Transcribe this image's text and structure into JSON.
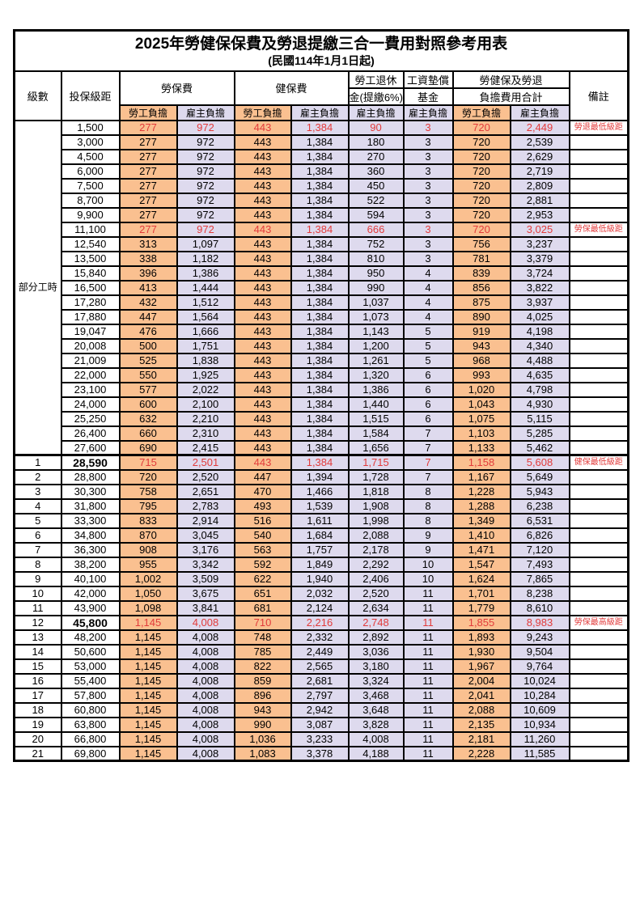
{
  "title": "2025年勞健保保費及勞退提繳三合一費用對照參考用表",
  "subtitle": "(民國114年1月1日起)",
  "labels": {
    "level": "級數",
    "bracket": "投保級距",
    "labor_group": "勞保費",
    "health_group": "健保費",
    "pension_top": "勞工退休",
    "pension_bottom": "金(提繳6%)",
    "wage_top": "工資墊償",
    "wage_bottom": "基金",
    "total_top": "勞健保及勞退",
    "total_bottom": "負擔費用合計",
    "remark": "備註",
    "employee": "勞工負擔",
    "employer": "雇主負擔",
    "part_time": "部分工時"
  },
  "colors": {
    "employee_bg": "#FAC090",
    "employer_bg": "#DEDAEE",
    "highlight_red": "#E23B3B"
  },
  "rows": [
    {
      "level": "",
      "bracket": "1,500",
      "labor_emp": "277",
      "labor_er": "972",
      "health_emp": "443",
      "health_er": "1,384",
      "pension_er": "90",
      "wage_er": "3",
      "total_emp": "720",
      "total_er": "2,449",
      "remark": "勞退最低級距",
      "red": true,
      "bold": false
    },
    {
      "level": "",
      "bracket": "3,000",
      "labor_emp": "277",
      "labor_er": "972",
      "health_emp": "443",
      "health_er": "1,384",
      "pension_er": "180",
      "wage_er": "3",
      "total_emp": "720",
      "total_er": "2,539",
      "remark": "",
      "red": false,
      "bold": false
    },
    {
      "level": "",
      "bracket": "4,500",
      "labor_emp": "277",
      "labor_er": "972",
      "health_emp": "443",
      "health_er": "1,384",
      "pension_er": "270",
      "wage_er": "3",
      "total_emp": "720",
      "total_er": "2,629",
      "remark": "",
      "red": false,
      "bold": false
    },
    {
      "level": "",
      "bracket": "6,000",
      "labor_emp": "277",
      "labor_er": "972",
      "health_emp": "443",
      "health_er": "1,384",
      "pension_er": "360",
      "wage_er": "3",
      "total_emp": "720",
      "total_er": "2,719",
      "remark": "",
      "red": false,
      "bold": false
    },
    {
      "level": "",
      "bracket": "7,500",
      "labor_emp": "277",
      "labor_er": "972",
      "health_emp": "443",
      "health_er": "1,384",
      "pension_er": "450",
      "wage_er": "3",
      "total_emp": "720",
      "total_er": "2,809",
      "remark": "",
      "red": false,
      "bold": false
    },
    {
      "level": "",
      "bracket": "8,700",
      "labor_emp": "277",
      "labor_er": "972",
      "health_emp": "443",
      "health_er": "1,384",
      "pension_er": "522",
      "wage_er": "3",
      "total_emp": "720",
      "total_er": "2,881",
      "remark": "",
      "red": false,
      "bold": false
    },
    {
      "level": "",
      "bracket": "9,900",
      "labor_emp": "277",
      "labor_er": "972",
      "health_emp": "443",
      "health_er": "1,384",
      "pension_er": "594",
      "wage_er": "3",
      "total_emp": "720",
      "total_er": "2,953",
      "remark": "",
      "red": false,
      "bold": false
    },
    {
      "level": "",
      "bracket": "11,100",
      "labor_emp": "277",
      "labor_er": "972",
      "health_emp": "443",
      "health_er": "1,384",
      "pension_er": "666",
      "wage_er": "3",
      "total_emp": "720",
      "total_er": "3,025",
      "remark": "勞保最低級距",
      "red": true,
      "bold": false
    },
    {
      "level": "",
      "bracket": "12,540",
      "labor_emp": "313",
      "labor_er": "1,097",
      "health_emp": "443",
      "health_er": "1,384",
      "pension_er": "752",
      "wage_er": "3",
      "total_emp": "756",
      "total_er": "3,237",
      "remark": "",
      "red": false,
      "bold": false
    },
    {
      "level": "",
      "bracket": "13,500",
      "labor_emp": "338",
      "labor_er": "1,182",
      "health_emp": "443",
      "health_er": "1,384",
      "pension_er": "810",
      "wage_er": "3",
      "total_emp": "781",
      "total_er": "3,379",
      "remark": "",
      "red": false,
      "bold": false
    },
    {
      "level": "",
      "bracket": "15,840",
      "labor_emp": "396",
      "labor_er": "1,386",
      "health_emp": "443",
      "health_er": "1,384",
      "pension_er": "950",
      "wage_er": "4",
      "total_emp": "839",
      "total_er": "3,724",
      "remark": "",
      "red": false,
      "bold": false
    },
    {
      "level": "",
      "bracket": "16,500",
      "labor_emp": "413",
      "labor_er": "1,444",
      "health_emp": "443",
      "health_er": "1,384",
      "pension_er": "990",
      "wage_er": "4",
      "total_emp": "856",
      "total_er": "3,822",
      "remark": "",
      "red": false,
      "bold": false
    },
    {
      "level": "",
      "bracket": "17,280",
      "labor_emp": "432",
      "labor_er": "1,512",
      "health_emp": "443",
      "health_er": "1,384",
      "pension_er": "1,037",
      "wage_er": "4",
      "total_emp": "875",
      "total_er": "3,937",
      "remark": "",
      "red": false,
      "bold": false
    },
    {
      "level": "",
      "bracket": "17,880",
      "labor_emp": "447",
      "labor_er": "1,564",
      "health_emp": "443",
      "health_er": "1,384",
      "pension_er": "1,073",
      "wage_er": "4",
      "total_emp": "890",
      "total_er": "4,025",
      "remark": "",
      "red": false,
      "bold": false
    },
    {
      "level": "",
      "bracket": "19,047",
      "labor_emp": "476",
      "labor_er": "1,666",
      "health_emp": "443",
      "health_er": "1,384",
      "pension_er": "1,143",
      "wage_er": "5",
      "total_emp": "919",
      "total_er": "4,198",
      "remark": "",
      "red": false,
      "bold": false
    },
    {
      "level": "",
      "bracket": "20,008",
      "labor_emp": "500",
      "labor_er": "1,751",
      "health_emp": "443",
      "health_er": "1,384",
      "pension_er": "1,200",
      "wage_er": "5",
      "total_emp": "943",
      "total_er": "4,340",
      "remark": "",
      "red": false,
      "bold": false
    },
    {
      "level": "",
      "bracket": "21,009",
      "labor_emp": "525",
      "labor_er": "1,838",
      "health_emp": "443",
      "health_er": "1,384",
      "pension_er": "1,261",
      "wage_er": "5",
      "total_emp": "968",
      "total_er": "4,488",
      "remark": "",
      "red": false,
      "bold": false
    },
    {
      "level": "",
      "bracket": "22,000",
      "labor_emp": "550",
      "labor_er": "1,925",
      "health_emp": "443",
      "health_er": "1,384",
      "pension_er": "1,320",
      "wage_er": "6",
      "total_emp": "993",
      "total_er": "4,635",
      "remark": "",
      "red": false,
      "bold": false
    },
    {
      "level": "",
      "bracket": "23,100",
      "labor_emp": "577",
      "labor_er": "2,022",
      "health_emp": "443",
      "health_er": "1,384",
      "pension_er": "1,386",
      "wage_er": "6",
      "total_emp": "1,020",
      "total_er": "4,798",
      "remark": "",
      "red": false,
      "bold": false
    },
    {
      "level": "",
      "bracket": "24,000",
      "labor_emp": "600",
      "labor_er": "2,100",
      "health_emp": "443",
      "health_er": "1,384",
      "pension_er": "1,440",
      "wage_er": "6",
      "total_emp": "1,043",
      "total_er": "4,930",
      "remark": "",
      "red": false,
      "bold": false
    },
    {
      "level": "",
      "bracket": "25,250",
      "labor_emp": "632",
      "labor_er": "2,210",
      "health_emp": "443",
      "health_er": "1,384",
      "pension_er": "1,515",
      "wage_er": "6",
      "total_emp": "1,075",
      "total_er": "5,115",
      "remark": "",
      "red": false,
      "bold": false
    },
    {
      "level": "",
      "bracket": "26,400",
      "labor_emp": "660",
      "labor_er": "2,310",
      "health_emp": "443",
      "health_er": "1,384",
      "pension_er": "1,584",
      "wage_er": "7",
      "total_emp": "1,103",
      "total_er": "5,285",
      "remark": "",
      "red": false,
      "bold": false
    },
    {
      "level": "",
      "bracket": "27,600",
      "labor_emp": "690",
      "labor_er": "2,415",
      "health_emp": "443",
      "health_er": "1,384",
      "pension_er": "1,656",
      "wage_er": "7",
      "total_emp": "1,133",
      "total_er": "5,462",
      "remark": "",
      "red": false,
      "bold": false
    },
    {
      "level": "1",
      "bracket": "28,590",
      "labor_emp": "715",
      "labor_er": "2,501",
      "health_emp": "443",
      "health_er": "1,384",
      "pension_er": "1,715",
      "wage_er": "7",
      "total_emp": "1,158",
      "total_er": "5,608",
      "remark": "健保最低級距",
      "red": true,
      "bold": true
    },
    {
      "level": "2",
      "bracket": "28,800",
      "labor_emp": "720",
      "labor_er": "2,520",
      "health_emp": "447",
      "health_er": "1,394",
      "pension_er": "1,728",
      "wage_er": "7",
      "total_emp": "1,167",
      "total_er": "5,649",
      "remark": "",
      "red": false,
      "bold": false
    },
    {
      "level": "3",
      "bracket": "30,300",
      "labor_emp": "758",
      "labor_er": "2,651",
      "health_emp": "470",
      "health_er": "1,466",
      "pension_er": "1,818",
      "wage_er": "8",
      "total_emp": "1,228",
      "total_er": "5,943",
      "remark": "",
      "red": false,
      "bold": false
    },
    {
      "level": "4",
      "bracket": "31,800",
      "labor_emp": "795",
      "labor_er": "2,783",
      "health_emp": "493",
      "health_er": "1,539",
      "pension_er": "1,908",
      "wage_er": "8",
      "total_emp": "1,288",
      "total_er": "6,238",
      "remark": "",
      "red": false,
      "bold": false
    },
    {
      "level": "5",
      "bracket": "33,300",
      "labor_emp": "833",
      "labor_er": "2,914",
      "health_emp": "516",
      "health_er": "1,611",
      "pension_er": "1,998",
      "wage_er": "8",
      "total_emp": "1,349",
      "total_er": "6,531",
      "remark": "",
      "red": false,
      "bold": false
    },
    {
      "level": "6",
      "bracket": "34,800",
      "labor_emp": "870",
      "labor_er": "3,045",
      "health_emp": "540",
      "health_er": "1,684",
      "pension_er": "2,088",
      "wage_er": "9",
      "total_emp": "1,410",
      "total_er": "6,826",
      "remark": "",
      "red": false,
      "bold": false
    },
    {
      "level": "7",
      "bracket": "36,300",
      "labor_emp": "908",
      "labor_er": "3,176",
      "health_emp": "563",
      "health_er": "1,757",
      "pension_er": "2,178",
      "wage_er": "9",
      "total_emp": "1,471",
      "total_er": "7,120",
      "remark": "",
      "red": false,
      "bold": false
    },
    {
      "level": "8",
      "bracket": "38,200",
      "labor_emp": "955",
      "labor_er": "3,342",
      "health_emp": "592",
      "health_er": "1,849",
      "pension_er": "2,292",
      "wage_er": "10",
      "total_emp": "1,547",
      "total_er": "7,493",
      "remark": "",
      "red": false,
      "bold": false
    },
    {
      "level": "9",
      "bracket": "40,100",
      "labor_emp": "1,002",
      "labor_er": "3,509",
      "health_emp": "622",
      "health_er": "1,940",
      "pension_er": "2,406",
      "wage_er": "10",
      "total_emp": "1,624",
      "total_er": "7,865",
      "remark": "",
      "red": false,
      "bold": false
    },
    {
      "level": "10",
      "bracket": "42,000",
      "labor_emp": "1,050",
      "labor_er": "3,675",
      "health_emp": "651",
      "health_er": "2,032",
      "pension_er": "2,520",
      "wage_er": "11",
      "total_emp": "1,701",
      "total_er": "8,238",
      "remark": "",
      "red": false,
      "bold": false
    },
    {
      "level": "11",
      "bracket": "43,900",
      "labor_emp": "1,098",
      "labor_er": "3,841",
      "health_emp": "681",
      "health_er": "2,124",
      "pension_er": "2,634",
      "wage_er": "11",
      "total_emp": "1,779",
      "total_er": "8,610",
      "remark": "",
      "red": false,
      "bold": false
    },
    {
      "level": "12",
      "bracket": "45,800",
      "labor_emp": "1,145",
      "labor_er": "4,008",
      "health_emp": "710",
      "health_er": "2,216",
      "pension_er": "2,748",
      "wage_er": "11",
      "total_emp": "1,855",
      "total_er": "8,983",
      "remark": "勞保最高級距",
      "red": true,
      "bold": true
    },
    {
      "level": "13",
      "bracket": "48,200",
      "labor_emp": "1,145",
      "labor_er": "4,008",
      "health_emp": "748",
      "health_er": "2,332",
      "pension_er": "2,892",
      "wage_er": "11",
      "total_emp": "1,893",
      "total_er": "9,243",
      "remark": "",
      "red": false,
      "bold": false
    },
    {
      "level": "14",
      "bracket": "50,600",
      "labor_emp": "1,145",
      "labor_er": "4,008",
      "health_emp": "785",
      "health_er": "2,449",
      "pension_er": "3,036",
      "wage_er": "11",
      "total_emp": "1,930",
      "total_er": "9,504",
      "remark": "",
      "red": false,
      "bold": false
    },
    {
      "level": "15",
      "bracket": "53,000",
      "labor_emp": "1,145",
      "labor_er": "4,008",
      "health_emp": "822",
      "health_er": "2,565",
      "pension_er": "3,180",
      "wage_er": "11",
      "total_emp": "1,967",
      "total_er": "9,764",
      "remark": "",
      "red": false,
      "bold": false
    },
    {
      "level": "16",
      "bracket": "55,400",
      "labor_emp": "1,145",
      "labor_er": "4,008",
      "health_emp": "859",
      "health_er": "2,681",
      "pension_er": "3,324",
      "wage_er": "11",
      "total_emp": "2,004",
      "total_er": "10,024",
      "remark": "",
      "red": false,
      "bold": false
    },
    {
      "level": "17",
      "bracket": "57,800",
      "labor_emp": "1,145",
      "labor_er": "4,008",
      "health_emp": "896",
      "health_er": "2,797",
      "pension_er": "3,468",
      "wage_er": "11",
      "total_emp": "2,041",
      "total_er": "10,284",
      "remark": "",
      "red": false,
      "bold": false
    },
    {
      "level": "18",
      "bracket": "60,800",
      "labor_emp": "1,145",
      "labor_er": "4,008",
      "health_emp": "943",
      "health_er": "2,942",
      "pension_er": "3,648",
      "wage_er": "11",
      "total_emp": "2,088",
      "total_er": "10,609",
      "remark": "",
      "red": false,
      "bold": false
    },
    {
      "level": "19",
      "bracket": "63,800",
      "labor_emp": "1,145",
      "labor_er": "4,008",
      "health_emp": "990",
      "health_er": "3,087",
      "pension_er": "3,828",
      "wage_er": "11",
      "total_emp": "2,135",
      "total_er": "10,934",
      "remark": "",
      "red": false,
      "bold": false
    },
    {
      "level": "20",
      "bracket": "66,800",
      "labor_emp": "1,145",
      "labor_er": "4,008",
      "health_emp": "1,036",
      "health_er": "3,233",
      "pension_er": "4,008",
      "wage_er": "11",
      "total_emp": "2,181",
      "total_er": "11,260",
      "remark": "",
      "red": false,
      "bold": false
    },
    {
      "level": "21",
      "bracket": "69,800",
      "labor_emp": "1,145",
      "labor_er": "4,008",
      "health_emp": "1,083",
      "health_er": "3,378",
      "pension_er": "4,188",
      "wage_er": "11",
      "total_emp": "2,228",
      "total_er": "11,585",
      "remark": "",
      "red": false,
      "bold": false
    }
  ]
}
